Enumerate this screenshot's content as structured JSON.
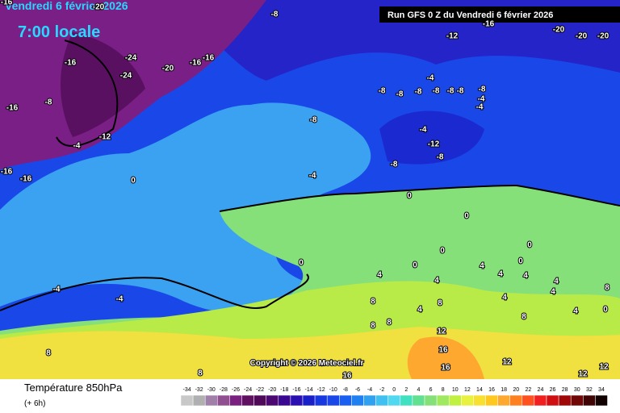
{
  "header": {
    "date": "Vendredi 6 février 2026",
    "time": "7:00 locale",
    "run": "Run GFS 0 Z du Vendredi 6 février 2026"
  },
  "copyright": "Copyright © 2026 Meteociel.fr",
  "footer": {
    "title": "Température 850hPa",
    "step": "(+ 6h)"
  },
  "scale": [
    -34,
    -32,
    -30,
    -28,
    -26,
    -24,
    -22,
    -20,
    -18,
    -16,
    -14,
    -12,
    -10,
    -8,
    -6,
    -4,
    -2,
    0,
    2,
    4,
    6,
    8,
    10,
    12,
    14,
    16,
    18,
    20,
    22,
    24,
    26,
    28,
    30,
    32,
    34
  ],
  "contour_labels": [
    -16,
    -20,
    -8,
    -16,
    -20,
    -20,
    -20,
    -12,
    -16,
    -24,
    -20,
    -16,
    -16,
    -24,
    -16,
    -8,
    -12,
    -4,
    -16,
    -16,
    -8,
    -4,
    -8,
    -8,
    -8,
    -8,
    -8,
    -8,
    -8,
    -4,
    -4,
    -4,
    -12,
    -8,
    -8,
    -4,
    0,
    0,
    0,
    0,
    0,
    0,
    0,
    0,
    0,
    -4,
    -4,
    4,
    4,
    4,
    4,
    4,
    4,
    4,
    4,
    4,
    8,
    4,
    8,
    8,
    8,
    8,
    8,
    8,
    8,
    12,
    12,
    12,
    12,
    16,
    16,
    16
  ]
}
